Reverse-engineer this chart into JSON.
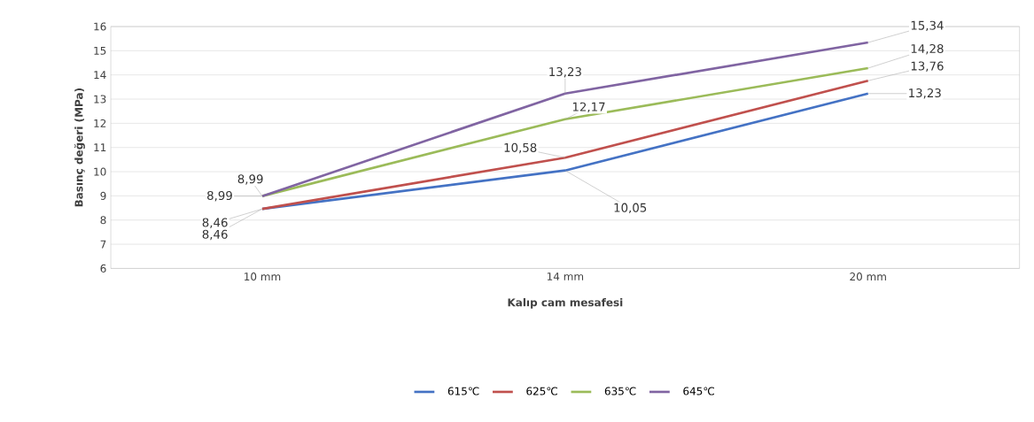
{
  "chart_data": {
    "type": "line",
    "xlabel": "Kalıp cam mesafesi",
    "ylabel": "Basınç değeri (MPa)",
    "categories": [
      "10 mm",
      "14 mm",
      "20 mm"
    ],
    "series": [
      {
        "name": "615℃",
        "color": "#4472c4",
        "values": [
          8.46,
          10.05,
          13.23
        ],
        "value_labels": [
          "8,46",
          "10,05",
          "13,23"
        ]
      },
      {
        "name": "625℃",
        "color": "#c0504d",
        "values": [
          8.46,
          10.58,
          13.76
        ],
        "value_labels": [
          "8,46",
          "10,58",
          "13,76"
        ]
      },
      {
        "name": "635℃",
        "color": "#9bbb59",
        "values": [
          8.99,
          12.17,
          14.28
        ],
        "value_labels": [
          "8,99",
          "12,17",
          "14,28"
        ]
      },
      {
        "name": "645℃",
        "color": "#8064a2",
        "values": [
          8.99,
          13.23,
          15.34
        ],
        "value_labels": [
          "8,99",
          "13,23",
          "15,34"
        ]
      }
    ],
    "ylim": [
      6,
      16
    ],
    "yticks": [
      6,
      7,
      8,
      9,
      10,
      11,
      12,
      13,
      14,
      15,
      16
    ],
    "grid": "y",
    "legend": "bottom",
    "marker": "none",
    "line_style": "solid"
  }
}
